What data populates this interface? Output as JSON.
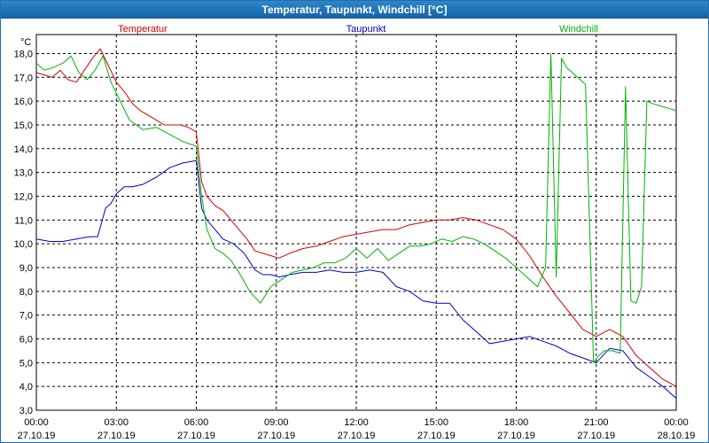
{
  "window": {
    "title": "Temperatur, Taupunkt, Windchill [°C]"
  },
  "chart_data": {
    "type": "line",
    "title": "Temperatur, Taupunkt, Windchill [°C]",
    "ylabel": "°C",
    "xlabel": "",
    "ylim": [
      3.0,
      18.8
    ],
    "xlim": [
      0,
      24
    ],
    "grid": true,
    "y_ticks": [
      3.0,
      4.0,
      5.0,
      6.0,
      7.0,
      8.0,
      9.0,
      10.0,
      11.0,
      12.0,
      13.0,
      14.0,
      15.0,
      16.0,
      17.0,
      18.0
    ],
    "y_tick_labels": [
      "3,0",
      "4,0",
      "5,0",
      "6,0",
      "7,0",
      "8,0",
      "9,0",
      "10,0",
      "11,0",
      "12,0",
      "13,0",
      "14,0",
      "15,0",
      "16,0",
      "17,0",
      "18,0"
    ],
    "x_ticks": [
      {
        "pos": 0,
        "time": "00:00",
        "date": "27.10.19"
      },
      {
        "pos": 3,
        "time": "03:00",
        "date": "27.10.19"
      },
      {
        "pos": 6,
        "time": "06:00",
        "date": "27.10.19"
      },
      {
        "pos": 9,
        "time": "09:00",
        "date": "27.10.19"
      },
      {
        "pos": 12,
        "time": "12:00",
        "date": "27.10.19"
      },
      {
        "pos": 15,
        "time": "15:00",
        "date": "27.10.19"
      },
      {
        "pos": 18,
        "time": "18:00",
        "date": "27.10.19"
      },
      {
        "pos": 21,
        "time": "21:00",
        "date": "27.10.19"
      },
      {
        "pos": 24,
        "time": "00:00",
        "date": "28.10.19"
      }
    ],
    "legend": [
      "Temperatur",
      "Taupunkt",
      "Windchill"
    ],
    "series": [
      {
        "name": "Temperatur",
        "color": "#d40000",
        "x": [
          0,
          0.3,
          0.6,
          0.9,
          1.2,
          1.5,
          1.8,
          2.1,
          2.4,
          2.7,
          3.0,
          3.3,
          3.6,
          3.9,
          4.2,
          4.5,
          4.8,
          5.1,
          5.4,
          5.7,
          6.0,
          6.2,
          6.4,
          6.7,
          7.0,
          7.3,
          7.6,
          7.9,
          8.2,
          8.5,
          8.8,
          9.1,
          9.5,
          10.0,
          10.5,
          11.0,
          11.5,
          12.0,
          12.5,
          13.0,
          13.5,
          14.0,
          14.5,
          15.0,
          15.5,
          16.0,
          16.5,
          17.0,
          17.5,
          18.0,
          18.5,
          19.0,
          19.5,
          20.0,
          20.5,
          21.0,
          21.5,
          22.0,
          22.5,
          23.0,
          23.5,
          24.0
        ],
        "values": [
          17.2,
          17.1,
          17.0,
          17.3,
          16.9,
          16.8,
          17.3,
          17.8,
          18.2,
          17.5,
          16.8,
          16.4,
          15.9,
          15.6,
          15.4,
          15.2,
          15.0,
          15.0,
          15.0,
          14.9,
          14.7,
          12.6,
          12.0,
          11.6,
          11.4,
          11.0,
          10.6,
          10.2,
          9.7,
          9.6,
          9.5,
          9.4,
          9.6,
          9.8,
          9.9,
          10.1,
          10.3,
          10.4,
          10.5,
          10.6,
          10.6,
          10.8,
          10.9,
          11.0,
          11.0,
          11.1,
          11.0,
          10.8,
          10.6,
          10.2,
          9.5,
          8.6,
          7.8,
          7.1,
          6.4,
          6.1,
          6.4,
          6.1,
          5.3,
          4.8,
          4.3,
          4.0
        ]
      },
      {
        "name": "Taupunkt",
        "color": "#0000c8",
        "x": [
          0,
          0.5,
          1.0,
          1.5,
          2.0,
          2.3,
          2.6,
          2.8,
          3.0,
          3.3,
          3.6,
          4.0,
          4.5,
          5.0,
          5.5,
          6.0,
          6.2,
          6.4,
          6.7,
          7.0,
          7.4,
          7.8,
          8.2,
          8.5,
          8.8,
          9.1,
          9.5,
          10.0,
          10.5,
          11.0,
          11.5,
          12.0,
          12.5,
          13.0,
          13.5,
          14.0,
          14.5,
          15.0,
          15.5,
          16.0,
          16.5,
          17.0,
          17.5,
          18.0,
          18.5,
          19.0,
          19.5,
          20.0,
          20.5,
          21.0,
          21.5,
          22.0,
          22.5,
          23.0,
          23.5,
          24.0
        ],
        "values": [
          10.2,
          10.1,
          10.1,
          10.2,
          10.3,
          10.3,
          11.5,
          11.7,
          12.1,
          12.4,
          12.4,
          12.5,
          12.8,
          13.2,
          13.4,
          13.5,
          11.5,
          11.0,
          10.6,
          10.2,
          10.0,
          9.6,
          8.9,
          8.7,
          8.7,
          8.6,
          8.7,
          8.8,
          8.8,
          8.9,
          8.8,
          8.8,
          8.9,
          8.8,
          8.2,
          8.0,
          7.6,
          7.5,
          7.5,
          6.8,
          6.3,
          5.8,
          5.9,
          6.0,
          6.1,
          5.9,
          5.7,
          5.4,
          5.2,
          5.0,
          5.6,
          5.5,
          4.8,
          4.4,
          4.0,
          3.5
        ]
      },
      {
        "name": "Windchill",
        "color": "#00b400",
        "x": [
          0,
          0.3,
          0.6,
          1.0,
          1.3,
          1.6,
          1.9,
          2.2,
          2.5,
          2.8,
          3.1,
          3.5,
          4.0,
          4.5,
          5.0,
          5.5,
          6.0,
          6.2,
          6.4,
          6.7,
          7.0,
          7.3,
          7.6,
          8.0,
          8.4,
          8.8,
          9.2,
          9.6,
          10.0,
          10.4,
          10.8,
          11.2,
          11.6,
          12.0,
          12.4,
          12.8,
          13.2,
          13.6,
          14.0,
          14.4,
          14.8,
          15.2,
          15.6,
          16.0,
          16.4,
          16.8,
          17.2,
          17.6,
          18.0,
          18.4,
          18.8,
          19.1,
          19.3,
          19.5,
          19.7,
          19.9,
          20.1,
          20.3,
          20.6,
          20.9,
          21.1,
          21.3,
          21.6,
          21.9,
          22.1,
          22.3,
          22.5,
          22.7,
          22.9,
          23.1,
          23.4,
          23.7,
          24.0
        ],
        "values": [
          17.6,
          17.3,
          17.4,
          17.6,
          17.9,
          17.2,
          16.9,
          17.3,
          17.9,
          16.8,
          16.1,
          15.2,
          14.8,
          14.9,
          14.6,
          14.3,
          14.1,
          12.0,
          10.6,
          9.8,
          9.6,
          9.3,
          8.8,
          8.0,
          7.5,
          8.2,
          8.5,
          8.8,
          8.9,
          9.0,
          9.2,
          9.2,
          9.4,
          9.8,
          9.4,
          9.8,
          9.3,
          9.6,
          9.9,
          9.9,
          10.0,
          10.2,
          10.1,
          10.3,
          10.2,
          10.0,
          9.7,
          9.4,
          9.0,
          8.6,
          8.2,
          9.0,
          18.0,
          8.6,
          17.8,
          17.4,
          17.2,
          17.0,
          16.7,
          5.0,
          5.3,
          5.5,
          5.5,
          5.4,
          16.6,
          7.6,
          7.5,
          8.2,
          16.0,
          15.9,
          15.8,
          15.7,
          15.6
        ]
      }
    ]
  }
}
